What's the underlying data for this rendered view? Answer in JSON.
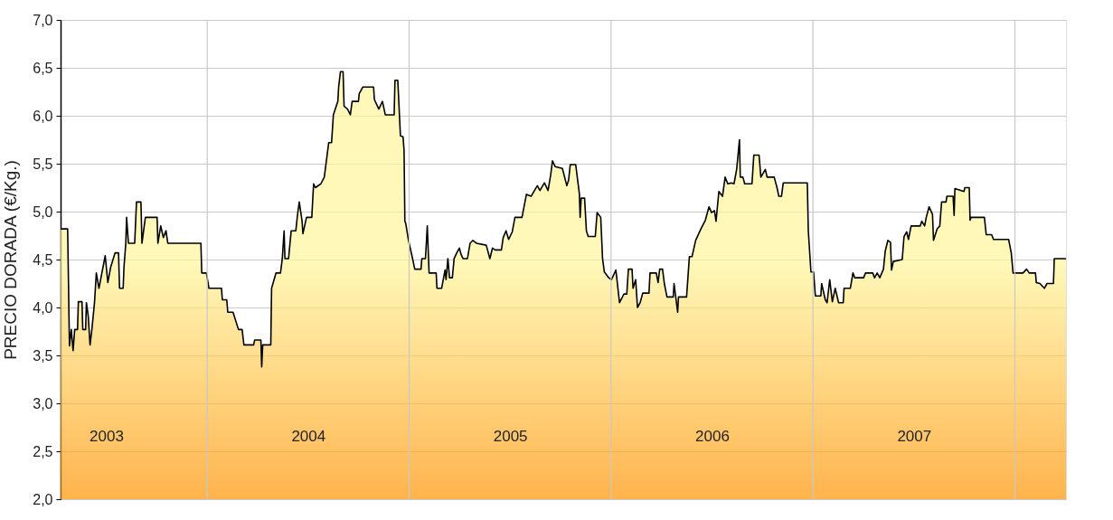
{
  "chart_data": {
    "type": "area",
    "ylabel": "PRECIO DORADA (€/Kg.)",
    "xlim": [
      2002.774,
      2007.753
    ],
    "xticks": [
      2003,
      2004,
      2005,
      2006,
      2007,
      {
        "value": 2003.5,
        "label": null
      },
      {
        "value": 2004.5,
        "label": null
      },
      {
        "value": 2005.5,
        "label": null
      },
      {
        "value": 2006.5,
        "label": null
      },
      {
        "value": 2007.5,
        "label": null
      }
    ],
    "ylim": [
      2.0,
      7.0
    ],
    "yticks": [
      {
        "value": 2.0,
        "label": "2,0"
      },
      {
        "value": 2.5,
        "label": "2,5"
      },
      {
        "value": 3.0,
        "label": "3,0"
      },
      {
        "value": 3.5,
        "label": "3,5"
      },
      {
        "value": 4.0,
        "label": "4,0"
      },
      {
        "value": 4.5,
        "label": "4,5"
      },
      {
        "value": 5.0,
        "label": "5,0"
      },
      {
        "value": 5.5,
        "label": "5,5"
      },
      {
        "value": 6.0,
        "label": "6,0"
      },
      {
        "value": 6.5,
        "label": "6,5"
      },
      {
        "value": 7.0,
        "label": "7,0"
      }
    ],
    "grid": true,
    "series": [
      {
        "color": "#fff59a",
        "x": [
          2002.774,
          2002.809,
          2002.818,
          2002.827,
          2002.836,
          2002.844,
          2002.858,
          2002.862,
          2002.88,
          2002.884,
          2002.898,
          2002.902,
          2002.911,
          2002.92,
          2002.929,
          2002.942,
          2002.951,
          2002.964,
          2002.995,
          2003.008,
          2003.022,
          2003.044,
          2003.061,
          2003.066,
          2003.084,
          2003.088,
          2003.097,
          2003.101,
          2003.11,
          2003.141,
          2003.15,
          2003.172,
          2003.177,
          2003.194,
          2003.252,
          2003.256,
          2003.27,
          2003.283,
          2003.296,
          2003.305,
          2003.469,
          2003.473,
          2003.496,
          2003.509,
          2003.571,
          2003.575,
          2003.597,
          2003.602,
          2003.628,
          2003.655,
          2003.673,
          2003.682,
          2003.73,
          2003.735,
          2003.766,
          2003.77,
          2003.775,
          2003.815,
          2003.819,
          2003.841,
          2003.863,
          2003.872,
          2003.881,
          2003.885,
          2003.903,
          2003.916,
          2003.939,
          2003.947,
          2003.956,
          2003.97,
          2003.974,
          2003.992,
          2004.018,
          2004.027,
          2004.036,
          2004.063,
          2004.08,
          2004.102,
          2004.116,
          2004.125,
          2004.147,
          2004.151,
          2004.16,
          2004.173,
          2004.178,
          2004.195,
          2004.209,
          2004.218,
          2004.249,
          2004.253,
          2004.271,
          2004.324,
          2004.328,
          2004.35,
          2004.368,
          2004.382,
          2004.426,
          2004.43,
          2004.444,
          2004.457,
          2004.47,
          2004.475,
          2004.479,
          2004.483,
          2004.497,
          2004.514,
          2004.528,
          2004.559,
          2004.563,
          2004.581,
          2004.59,
          2004.599,
          2004.634,
          2004.638,
          2004.661,
          2004.678,
          2004.683,
          2004.692,
          2004.7,
          2004.714,
          2004.723,
          2004.736,
          2004.749,
          2004.758,
          2004.767,
          2004.789,
          2004.802,
          2004.816,
          2004.833,
          2004.882,
          2004.9,
          2004.913,
          2004.926,
          2004.957,
          2004.966,
          2004.98,
          2004.993,
          2005.011,
          2005.024,
          2005.059,
          2005.081,
          2005.104,
          2005.121,
          2005.135,
          2005.148,
          2005.17,
          2005.188,
          2005.201,
          2005.21,
          2005.223,
          2005.259,
          2005.281,
          2005.29,
          2005.298,
          2005.325,
          2005.343,
          2005.347,
          2005.352,
          2005.369,
          2005.378,
          2005.387,
          2005.422,
          2005.431,
          2005.449,
          2005.458,
          2005.467,
          2005.489,
          2005.502,
          2005.524,
          2005.542,
          2005.564,
          2005.578,
          2005.586,
          2005.604,
          2005.609,
          2005.622,
          2005.631,
          2005.644,
          2005.657,
          2005.688,
          2005.693,
          2005.724,
          2005.733,
          2005.741,
          2005.755,
          2005.764,
          2005.777,
          2005.808,
          2005.812,
          2005.83,
          2005.834,
          2005.874,
          2005.888,
          2005.901,
          2005.919,
          2005.945,
          2005.967,
          2005.985,
          2005.998,
          2006.012,
          2006.02,
          2006.034,
          2006.052,
          2006.065,
          2006.078,
          2006.096,
          2006.109,
          2006.122,
          2006.136,
          2006.14,
          2006.153,
          2006.162,
          2006.198,
          2006.207,
          2006.233,
          2006.242,
          2006.264,
          2006.273,
          2006.295,
          2006.308,
          2006.322,
          2006.331,
          2006.344,
          2006.353,
          2006.472,
          2006.477,
          2006.49,
          2006.503,
          2006.512,
          2006.539,
          2006.543,
          2006.561,
          2006.57,
          2006.583,
          2006.596,
          2006.61,
          2006.627,
          2006.65,
          2006.654,
          2006.685,
          2006.698,
          2006.707,
          2006.751,
          2006.76,
          2006.796,
          2006.805,
          2006.818,
          2006.831,
          2006.849,
          2006.858,
          2006.871,
          2006.884,
          2006.889,
          2006.898,
          2006.942,
          2006.951,
          2006.964,
          2006.973,
          2006.986,
          2007.031,
          2007.039,
          2007.053,
          2007.061,
          2007.075,
          2007.092,
          2007.097,
          2007.115,
          2007.128,
          2007.137,
          2007.159,
          2007.163,
          2007.194,
          2007.199,
          2007.203,
          2007.248,
          2007.252,
          2007.274,
          2007.278,
          2007.283,
          2007.349,
          2007.358,
          2007.385,
          2007.394,
          2007.469,
          2007.482,
          2007.491,
          2007.54,
          2007.558,
          2007.571,
          2007.602,
          2007.606,
          2007.624,
          2007.646,
          2007.659,
          2007.691,
          2007.695,
          2007.753
        ],
        "values": [
          4.82,
          4.82,
          3.6,
          3.77,
          3.55,
          3.77,
          3.77,
          4.06,
          4.06,
          3.77,
          3.77,
          4.05,
          3.91,
          3.61,
          3.77,
          4.05,
          4.36,
          4.2,
          4.54,
          4.26,
          4.42,
          4.57,
          4.57,
          4.2,
          4.2,
          4.42,
          4.67,
          4.94,
          4.67,
          4.67,
          5.1,
          5.1,
          4.67,
          4.94,
          4.94,
          4.67,
          4.85,
          4.73,
          4.8,
          4.67,
          4.67,
          4.36,
          4.36,
          4.2,
          4.2,
          4.08,
          4.08,
          3.95,
          3.95,
          3.77,
          3.77,
          3.61,
          3.61,
          3.66,
          3.66,
          3.38,
          3.61,
          3.61,
          4.2,
          4.36,
          4.36,
          4.51,
          4.8,
          4.51,
          4.51,
          4.8,
          4.8,
          4.96,
          5.1,
          4.9,
          4.77,
          4.94,
          4.94,
          5.29,
          5.25,
          5.29,
          5.36,
          5.72,
          5.72,
          6.01,
          6.15,
          6.3,
          6.46,
          6.46,
          6.1,
          6.07,
          6.01,
          6.15,
          6.15,
          6.23,
          6.3,
          6.3,
          6.17,
          6.07,
          6.15,
          6.01,
          6.01,
          6.37,
          6.37,
          5.79,
          5.78,
          5.64,
          4.9,
          4.88,
          4.7,
          4.54,
          4.4,
          4.4,
          4.51,
          4.51,
          4.85,
          4.36,
          4.36,
          4.2,
          4.2,
          4.39,
          4.29,
          4.51,
          4.31,
          4.31,
          4.51,
          4.57,
          4.62,
          4.55,
          4.51,
          4.51,
          4.67,
          4.7,
          4.67,
          4.65,
          4.51,
          4.62,
          4.6,
          4.6,
          4.73,
          4.8,
          4.71,
          4.79,
          4.94,
          4.94,
          5.18,
          5.16,
          5.22,
          5.27,
          5.22,
          5.3,
          5.22,
          5.38,
          5.53,
          5.47,
          5.45,
          5.27,
          5.33,
          5.49,
          5.49,
          5.19,
          4.94,
          5.14,
          5.14,
          4.8,
          4.74,
          4.74,
          4.99,
          4.94,
          4.51,
          4.37,
          4.31,
          4.29,
          4.39,
          4.05,
          4.14,
          4.14,
          4.4,
          4.4,
          4.2,
          4.29,
          4.0,
          4.05,
          4.15,
          4.15,
          4.36,
          4.36,
          4.26,
          4.4,
          4.4,
          4.25,
          4.11,
          4.11,
          4.25,
          3.95,
          4.11,
          4.11,
          4.53,
          4.53,
          4.7,
          4.82,
          4.91,
          5.05,
          4.99,
          5.01,
          4.9,
          5.21,
          5.16,
          5.36,
          5.29,
          5.3,
          5.29,
          5.44,
          5.75,
          5.36,
          5.36,
          5.29,
          5.29,
          5.59,
          5.59,
          5.36,
          5.44,
          5.36,
          5.36,
          5.36,
          5.25,
          5.16,
          5.16,
          5.3,
          5.3,
          4.8,
          4.37,
          4.37,
          4.12,
          4.12,
          4.25,
          4.08,
          4.05,
          4.29,
          4.06,
          4.2,
          4.05,
          4.05,
          4.2,
          4.2,
          4.36,
          4.31,
          4.31,
          4.36,
          4.36,
          4.31,
          4.36,
          4.31,
          4.4,
          4.59,
          4.7,
          4.68,
          4.39,
          4.48,
          4.5,
          4.74,
          4.79,
          4.71,
          4.85,
          4.85,
          4.9,
          4.85,
          4.94,
          5.05,
          4.97,
          4.7,
          4.82,
          4.85,
          5.1,
          5.1,
          5.16,
          5.16,
          4.96,
          5.24,
          5.21,
          5.25,
          5.25,
          4.91,
          4.94,
          4.94,
          4.76,
          4.76,
          4.71,
          4.71,
          4.57,
          4.36,
          4.36,
          4.4,
          4.36,
          4.36,
          4.26,
          4.25,
          4.2,
          4.25,
          4.25,
          4.51,
          4.51
        ]
      }
    ]
  }
}
